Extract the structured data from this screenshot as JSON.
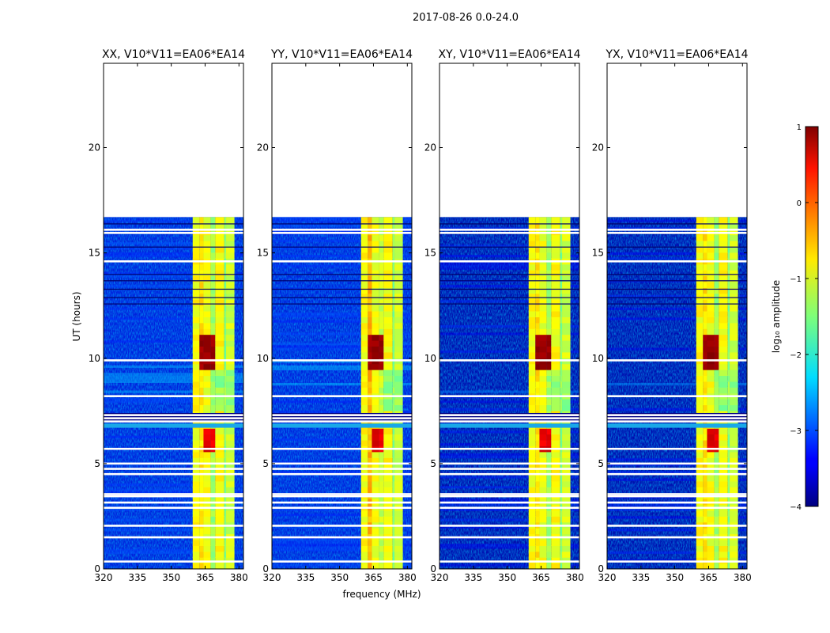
{
  "figure_title": "2017-08-26 0.0-24.0",
  "chart_data": {
    "type": "heatmap",
    "title": "2017-08-26 0.0-24.0",
    "xlabel": "frequency (MHz)",
    "ylabel": "UT (hours)",
    "xlim": [
      320,
      382
    ],
    "ylim": [
      0,
      24
    ],
    "xticks": [
      320,
      335,
      350,
      365,
      380
    ],
    "xtick_labels": [
      "320",
      "335",
      "350",
      "365",
      "380"
    ],
    "yticks": [
      0,
      5,
      10,
      15,
      20
    ],
    "ytick_labels": [
      "0",
      "5",
      "10",
      "15",
      "20"
    ],
    "data_extent_hours": [
      0,
      16.7
    ],
    "panels": [
      {
        "title": "XX, V10*V11=EA06*EA14",
        "pol": "XX"
      },
      {
        "title": "YY, V10*V11=EA06*EA14",
        "pol": "YY"
      },
      {
        "title": "XY, V10*V11=EA06*EA14",
        "pol": "XY"
      },
      {
        "title": "YX, V10*V11=EA06*EA14",
        "pol": "YX"
      }
    ],
    "rfi_bands_mhz": [
      {
        "from": 359.5,
        "to": 362.5
      },
      {
        "from": 362.5,
        "to": 364.3
      },
      {
        "from": 364.3,
        "to": 367.5
      },
      {
        "from": 367.5,
        "to": 369.5
      },
      {
        "from": 369.5,
        "to": 373.5
      },
      {
        "from": 373.5,
        "to": 374.3
      },
      {
        "from": 374.3,
        "to": 378.0
      }
    ],
    "flagged_rows_hours": [
      0.35,
      1.5,
      2.05,
      2.9,
      3.15,
      3.45,
      3.55,
      4.5,
      4.75,
      5.0,
      5.7,
      7.0,
      7.15,
      7.3,
      8.2,
      9.9,
      14.6,
      15.95,
      16.1
    ],
    "colorbar": {
      "label": "log₁₀ amplitude",
      "min": -4,
      "max": 1,
      "ticks": [
        "1",
        "0",
        "−1",
        "−2",
        "−3",
        "−4"
      ],
      "tick_values": [
        1,
        0,
        -1,
        -2,
        -3,
        -4
      ]
    }
  }
}
